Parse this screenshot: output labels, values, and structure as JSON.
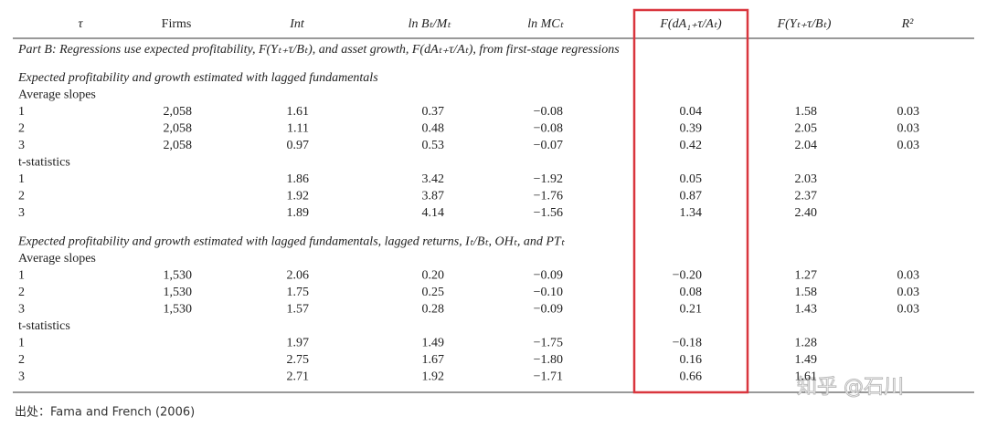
{
  "header": [
    "τ",
    "Firms",
    "Int",
    "ln Bₜ/Mₜ",
    "ln MCₜ",
    "F(dA₁₊τ/Aₜ)",
    "F(Yₜ₊τ/Bₜ)",
    "R²"
  ],
  "part_title": "Part B: Regressions use expected profitability, F(Yₜ₊τ/Bₜ), and asset growth, F(dAₜ₊τ/Aₜ), from first-stage regressions",
  "sections": [
    {
      "heading": "Expected profitability and growth estimated with lagged fundamentals",
      "groups": [
        {
          "label": "Average slopes",
          "rows": [
            [
              "1",
              "2,058",
              "1.61",
              "0.37",
              "−0.08",
              "0.04",
              "1.58",
              "0.03"
            ],
            [
              "2",
              "2,058",
              "1.11",
              "0.48",
              "−0.08",
              "0.39",
              "2.05",
              "0.03"
            ],
            [
              "3",
              "2,058",
              "0.97",
              "0.53",
              "−0.07",
              "0.42",
              "2.04",
              "0.03"
            ]
          ]
        },
        {
          "label": "t-statistics",
          "rows": [
            [
              "1",
              null,
              "1.86",
              "3.42",
              "−1.92",
              "0.05",
              "2.03",
              null
            ],
            [
              "2",
              null,
              "1.92",
              "3.87",
              "−1.76",
              "0.87",
              "2.37",
              null
            ],
            [
              "3",
              null,
              "1.89",
              "4.14",
              "−1.56",
              "1.34",
              "2.40",
              null
            ]
          ]
        }
      ]
    },
    {
      "heading": "Expected profitability and growth estimated with lagged fundamentals, lagged returns, Iₜ/Bₜ, OHₜ, and PTₜ",
      "groups": [
        {
          "label": "Average slopes",
          "rows": [
            [
              "1",
              "1,530",
              "2.06",
              "0.20",
              "−0.09",
              "−0.20",
              "1.27",
              "0.03"
            ],
            [
              "2",
              "1,530",
              "1.75",
              "0.25",
              "−0.10",
              "0.08",
              "1.58",
              "0.03"
            ],
            [
              "3",
              "1,530",
              "1.57",
              "0.28",
              "−0.09",
              "0.21",
              "1.43",
              "0.03"
            ]
          ]
        },
        {
          "label": "t-statistics",
          "rows": [
            [
              "1",
              null,
              "1.97",
              "1.49",
              "−1.75",
              "−0.18",
              "1.28",
              null
            ],
            [
              "2",
              null,
              "2.75",
              "1.67",
              "−1.80",
              "0.16",
              "1.49",
              null
            ],
            [
              "3",
              null,
              "2.71",
              "1.92",
              "−1.71",
              "0.66",
              "1.61",
              null
            ]
          ]
        }
      ]
    }
  ],
  "source": "出处：Fama and French (2006)",
  "watermark": "知乎 @石川"
}
